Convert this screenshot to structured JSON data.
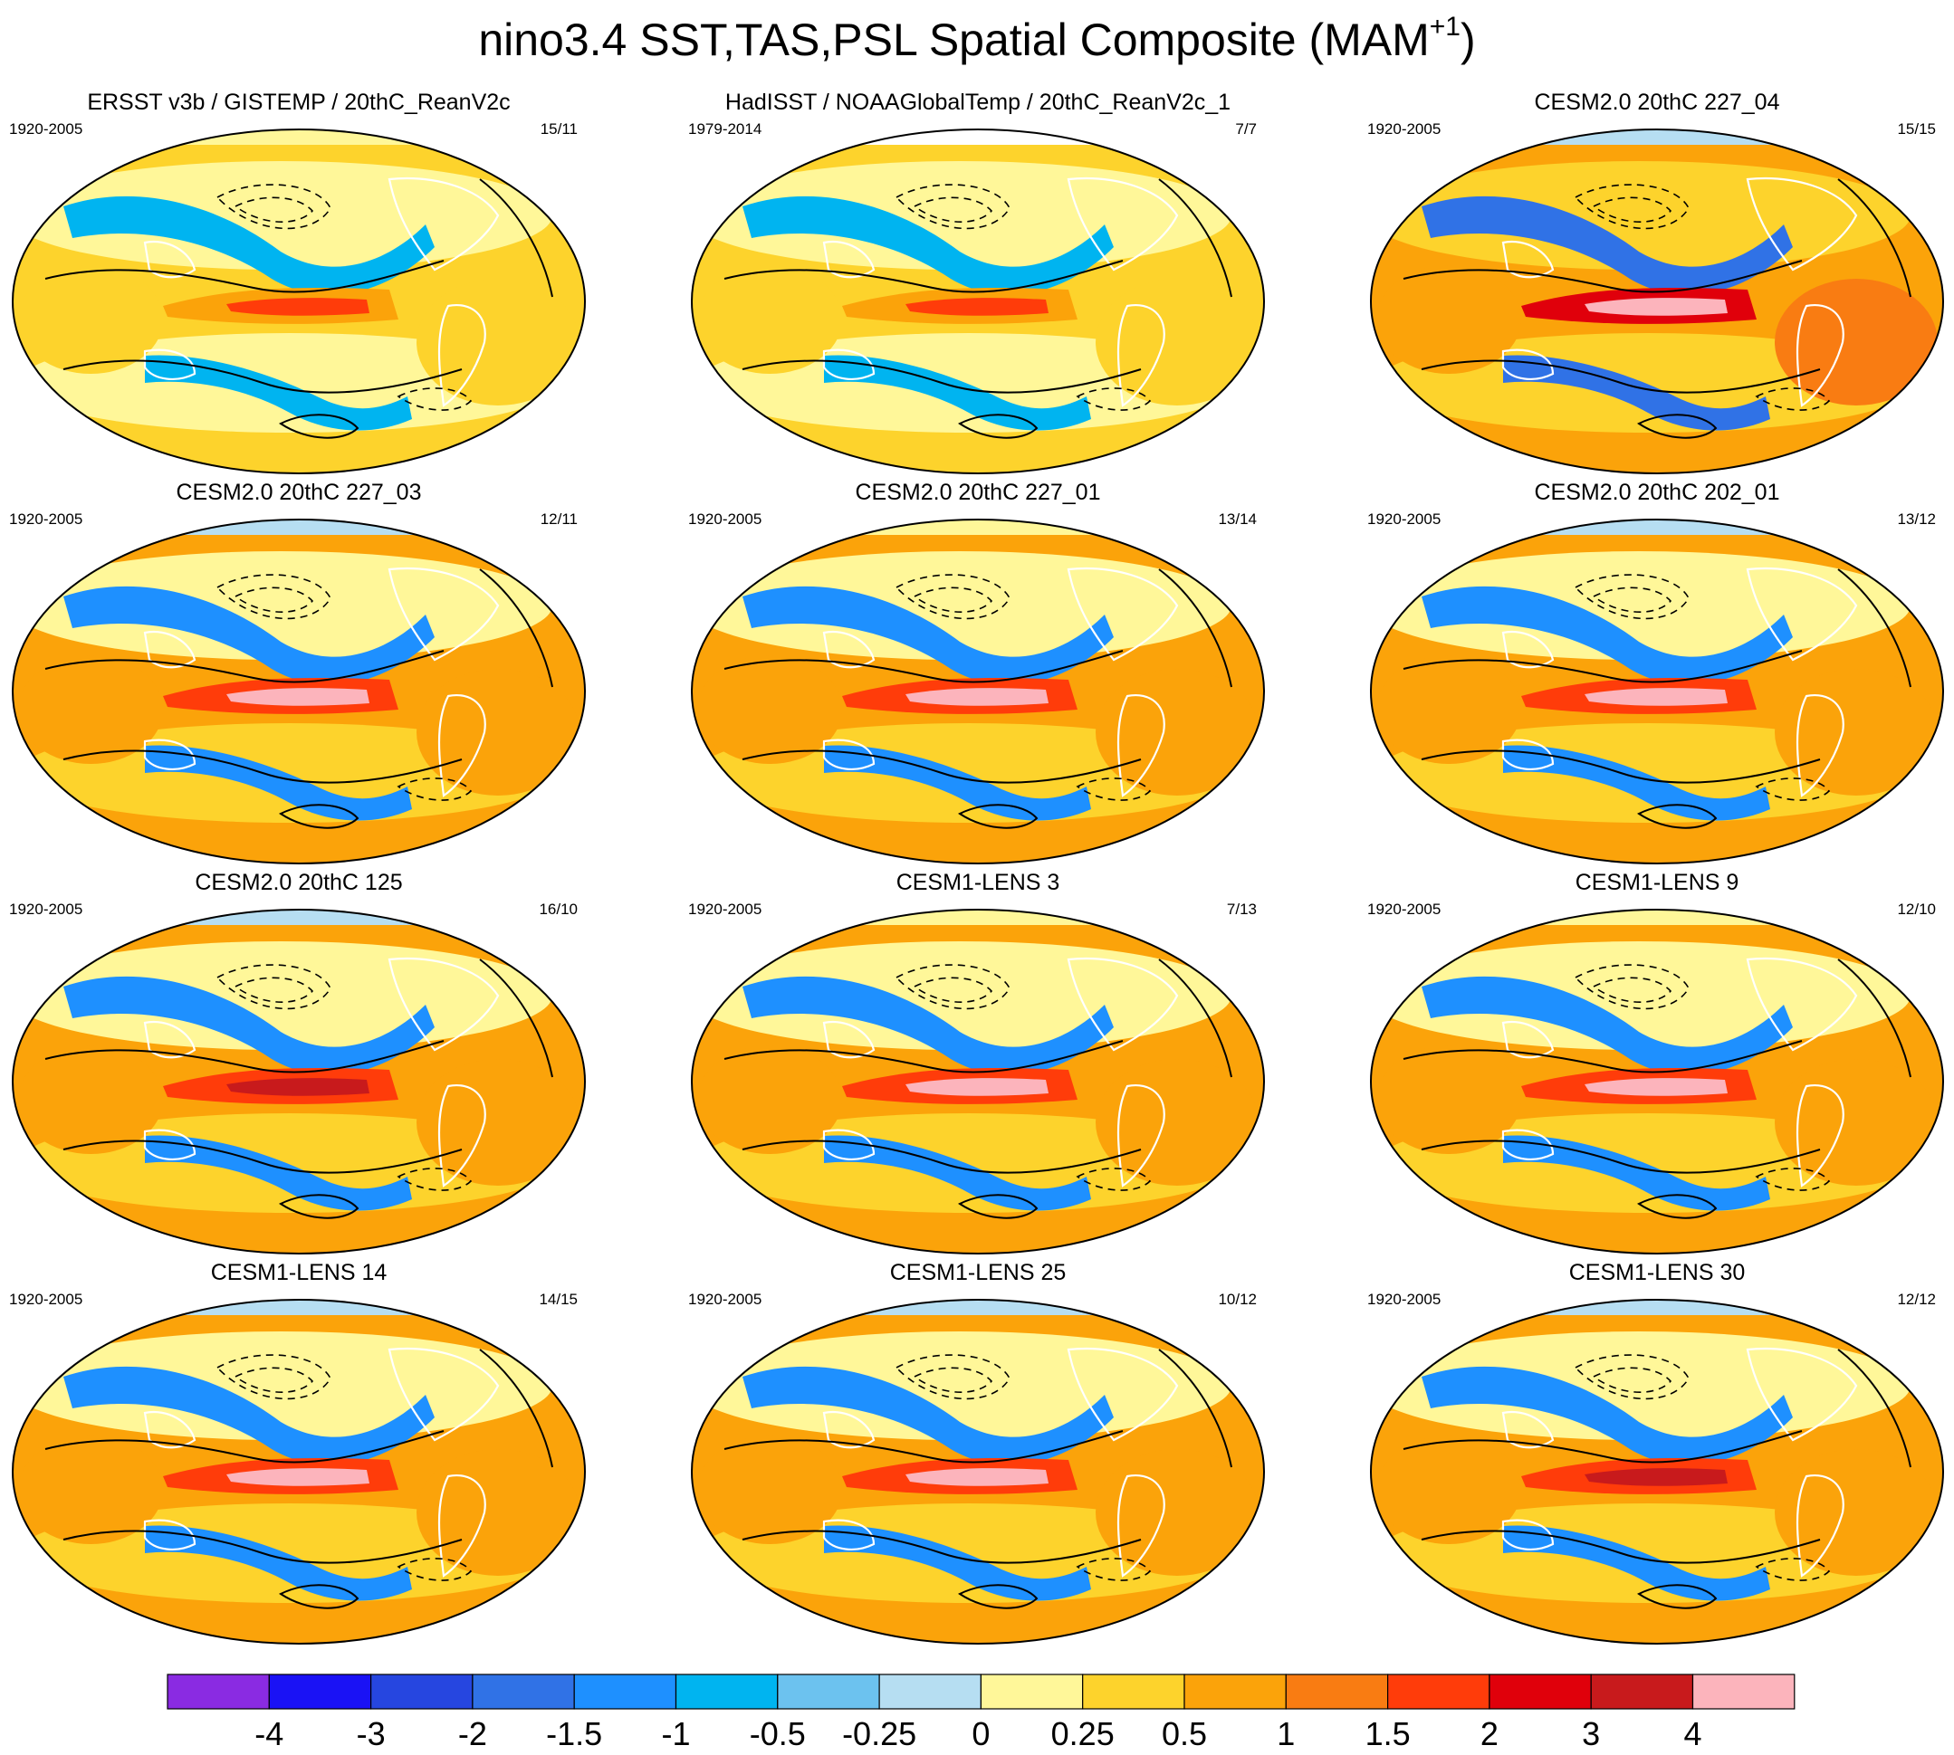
{
  "figure": {
    "title_main": "nino3.4 SST,TAS,PSL Spatial Composite (MAM",
    "title_superscript": "+1",
    "title_close": ")"
  },
  "panels": [
    {
      "title": "ERSST v3b / GISTEMP / 20thC_ReanV2c",
      "period": "1920-2005",
      "count": "15/11",
      "intensity": 0.9,
      "pole_cap": "yellow"
    },
    {
      "title": "HadISST / NOAAGlobalTemp / 20thC_ReanV2c_1",
      "period": "1979-2014",
      "count": "7/7",
      "intensity": 0.8,
      "pole_cap": "white"
    },
    {
      "title": "CESM2.0 20thC 227_04",
      "period": "1920-2005",
      "count": "15/15",
      "intensity": 1.6,
      "pole_cap": "lightblue"
    },
    {
      "title": "CESM2.0 20thC 227_03",
      "period": "1920-2005",
      "count": "12/11",
      "intensity": 1.5,
      "pole_cap": "lightblue"
    },
    {
      "title": "CESM2.0 20thC 227_01",
      "period": "1920-2005",
      "count": "13/14",
      "intensity": 1.5,
      "pole_cap": "yellow"
    },
    {
      "title": "CESM2.0 20thC 202_01",
      "period": "1920-2005",
      "count": "13/12",
      "intensity": 1.5,
      "pole_cap": "lightblue"
    },
    {
      "title": "CESM2.0 20thC 125",
      "period": "1920-2005",
      "count": "16/10",
      "intensity": 1.3,
      "pole_cap": "lightblue"
    },
    {
      "title": "CESM1-LENS 3",
      "period": "1920-2005",
      "count": "7/13",
      "intensity": 1.4,
      "pole_cap": "yellow"
    },
    {
      "title": "CESM1-LENS 9",
      "period": "1920-2005",
      "count": "12/10",
      "intensity": 1.4,
      "pole_cap": "yellow"
    },
    {
      "title": "CESM1-LENS 14",
      "period": "1920-2005",
      "count": "14/15",
      "intensity": 1.4,
      "pole_cap": "lightblue"
    },
    {
      "title": "CESM1-LENS 25",
      "period": "1920-2005",
      "count": "10/12",
      "intensity": 1.4,
      "pole_cap": "lightblue"
    },
    {
      "title": "CESM1-LENS 30",
      "period": "1920-2005",
      "count": "12/12",
      "intensity": 1.3,
      "pole_cap": "lightblue"
    }
  ],
  "colorbar": {
    "colors": [
      "#8a2be2",
      "#1a12f5",
      "#2646e0",
      "#3072e6",
      "#1e90ff",
      "#00b4f0",
      "#6cc2ef",
      "#b6def2",
      "#fff799",
      "#fdd32c",
      "#fba30a",
      "#f97c12",
      "#ff3c0a",
      "#e0000b",
      "#c81a1c",
      "#fcb4bc"
    ],
    "labels": [
      "-4",
      "-3",
      "-2",
      "-1.5",
      "-1",
      "-0.5",
      "-0.25",
      "0",
      "0.25",
      "0.5",
      "1",
      "1.5",
      "2",
      "3",
      "4"
    ]
  }
}
